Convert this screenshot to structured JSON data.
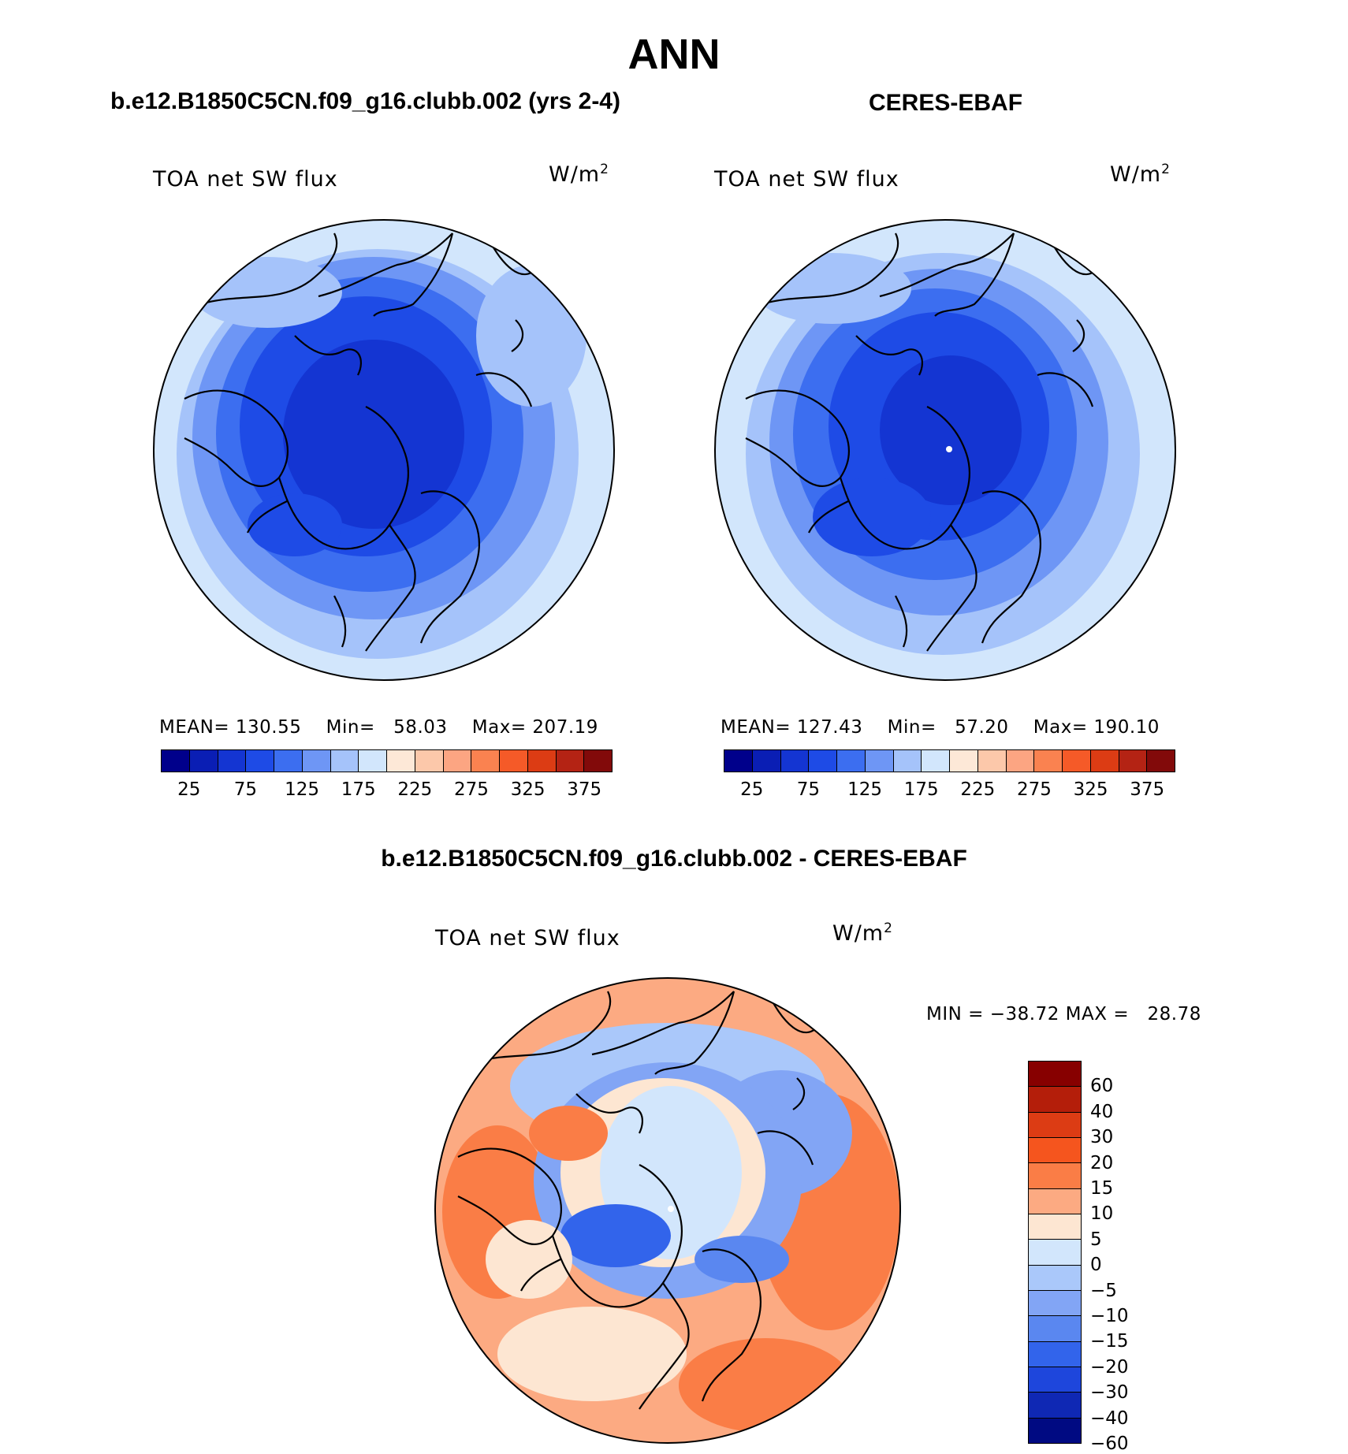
{
  "title": "ANN",
  "panels": [
    {
      "subtitle": "b.e12.B1850C5CN.f09_g16.clubb.002 (yrs 2-4)",
      "variable": "TOA net SW flux",
      "units": "W/m",
      "units_exp": "2",
      "stats": {
        "mean_label": "MEAN=",
        "mean": "130.55",
        "min_label": "Min=",
        "min": "58.03",
        "max_label": "Max=",
        "max": "207.19"
      }
    },
    {
      "subtitle": "CERES-EBAF",
      "variable": "TOA net SW flux",
      "units": "W/m",
      "units_exp": "2",
      "stats": {
        "mean_label": "MEAN=",
        "mean": "127.43",
        "min_label": "Min=",
        "min": "57.20",
        "max_label": "Max=",
        "max": "190.10"
      }
    }
  ],
  "abs_colorbar": {
    "colors": [
      "#00008b",
      "#0a1eb4",
      "#1435d2",
      "#1e4be6",
      "#3c6ef0",
      "#6e96f5",
      "#a5c3fa",
      "#d2e6fc",
      "#fde8d7",
      "#fcc8aa",
      "#fca582",
      "#fa8250",
      "#f55a28",
      "#dc3c14",
      "#b42314",
      "#820a0a"
    ],
    "tick_labels": [
      "25",
      "75",
      "125",
      "175",
      "225",
      "275",
      "325",
      "375"
    ]
  },
  "diff": {
    "subtitle": "b.e12.B1850C5CN.f09_g16.clubb.002 - CERES-EBAF",
    "variable": "TOA net SW flux",
    "units": "W/m",
    "units_exp": "2",
    "min_label": "MIN =",
    "min": "−38.72",
    "max_label": "MAX =",
    "max": "28.78"
  },
  "diff_colorbar": {
    "colors": [
      "#870000",
      "#b41e0a",
      "#dc3c14",
      "#f5551e",
      "#fa7d46",
      "#fcaa82",
      "#fde6d2",
      "#d2e6fc",
      "#aac8fa",
      "#82a5f5",
      "#5a87f0",
      "#3264eb",
      "#1e46dc",
      "#0f28b4",
      "#000a82"
    ],
    "tick_labels": [
      "60",
      "40",
      "30",
      "20",
      "15",
      "10",
      "5",
      "0",
      "−5",
      "−10",
      "−15",
      "−20",
      "−30",
      "−40",
      "−60"
    ]
  }
}
